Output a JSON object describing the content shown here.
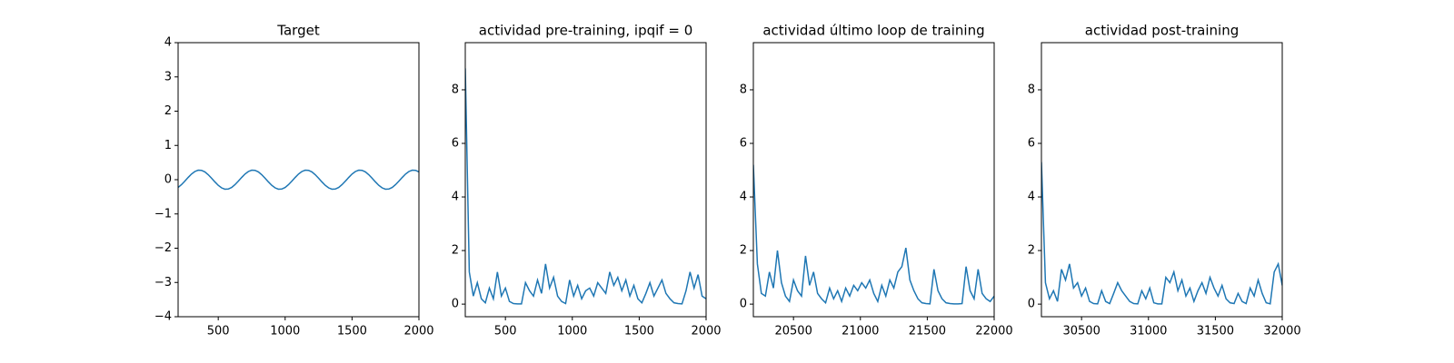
{
  "chart_data": [
    {
      "type": "line",
      "title": "Target",
      "color": "#1f77b4",
      "x": [
        200,
        225,
        250,
        275,
        300,
        325,
        350,
        375,
        400,
        425,
        450,
        475,
        500,
        525,
        550,
        575,
        600,
        625,
        650,
        675,
        700,
        725,
        750,
        775,
        800,
        825,
        850,
        875,
        900,
        925,
        950,
        975,
        1000,
        1025,
        1050,
        1075,
        1100,
        1125,
        1150,
        1175,
        1200,
        1225,
        1250,
        1275,
        1300,
        1325,
        1350,
        1375,
        1400,
        1425,
        1450,
        1475,
        1500,
        1525,
        1550,
        1575,
        1600,
        1625,
        1650,
        1675,
        1700,
        1725,
        1750,
        1775,
        1800,
        1825,
        1850,
        1875,
        1900,
        1925,
        1950,
        1975,
        2000
      ],
      "values": [
        -0.227,
        -0.146,
        -0.044,
        0.065,
        0.165,
        0.239,
        0.277,
        0.272,
        0.227,
        0.146,
        0.044,
        -0.065,
        -0.165,
        -0.239,
        -0.277,
        -0.272,
        -0.227,
        -0.146,
        -0.044,
        0.065,
        0.165,
        0.239,
        0.277,
        0.272,
        0.227,
        0.146,
        0.044,
        -0.065,
        -0.165,
        -0.239,
        -0.277,
        -0.272,
        -0.227,
        -0.146,
        -0.044,
        0.065,
        0.165,
        0.239,
        0.277,
        0.272,
        0.227,
        0.146,
        0.044,
        -0.065,
        -0.165,
        -0.239,
        -0.277,
        -0.272,
        -0.227,
        -0.146,
        -0.044,
        0.065,
        0.165,
        0.239,
        0.277,
        0.272,
        0.227,
        0.146,
        0.044,
        -0.065,
        -0.165,
        -0.239,
        -0.277,
        -0.272,
        -0.227,
        -0.146,
        -0.044,
        0.065,
        0.165,
        0.239,
        0.277,
        0.272,
        0.227
      ],
      "xlim": [
        200,
        2000
      ],
      "xticks": [
        500,
        1000,
        1500,
        2000
      ],
      "ylim": [
        -4,
        4
      ],
      "yticks": [
        {
          "value": -4,
          "label": "−4"
        },
        {
          "value": -3,
          "label": "−3"
        },
        {
          "value": -2,
          "label": "−2"
        },
        {
          "value": -1,
          "label": "−1"
        },
        0,
        1,
        2,
        3,
        4
      ]
    },
    {
      "type": "line",
      "title": "actividad pre-training, ipqif = 0",
      "color": "#1f77b4",
      "x": [
        200,
        230,
        260,
        290,
        320,
        350,
        380,
        410,
        440,
        470,
        500,
        530,
        560,
        590,
        620,
        650,
        680,
        710,
        740,
        770,
        800,
        830,
        860,
        890,
        920,
        950,
        980,
        1010,
        1040,
        1070,
        1100,
        1130,
        1160,
        1190,
        1220,
        1250,
        1280,
        1310,
        1340,
        1370,
        1400,
        1430,
        1460,
        1490,
        1520,
        1550,
        1580,
        1610,
        1640,
        1670,
        1700,
        1730,
        1760,
        1790,
        1820,
        1850,
        1880,
        1910,
        1940,
        1970,
        2000
      ],
      "values": [
        8.8,
        1.2,
        0.3,
        0.8,
        0.2,
        0.05,
        0.6,
        0.2,
        1.2,
        0.3,
        0.6,
        0.1,
        0.02,
        0.01,
        0.01,
        0.8,
        0.5,
        0.3,
        0.9,
        0.4,
        1.5,
        0.6,
        1.0,
        0.3,
        0.1,
        0.02,
        0.9,
        0.3,
        0.7,
        0.2,
        0.5,
        0.6,
        0.3,
        0.8,
        0.6,
        0.4,
        1.2,
        0.7,
        1.0,
        0.5,
        0.9,
        0.3,
        0.7,
        0.2,
        0.05,
        0.4,
        0.8,
        0.3,
        0.6,
        0.9,
        0.4,
        0.2,
        0.05,
        0.02,
        0.01,
        0.5,
        1.2,
        0.6,
        1.1,
        0.3,
        0.2
      ],
      "xlim": [
        200,
        2000
      ],
      "xticks": [
        500,
        1000,
        1500,
        2000
      ],
      "ylim": [
        -0.47,
        9.76
      ],
      "yticks": [
        0,
        2,
        4,
        6,
        8
      ]
    },
    {
      "type": "line",
      "title": "actividad último loop de training",
      "color": "#1f77b4",
      "x": [
        20200,
        20230,
        20260,
        20290,
        20320,
        20350,
        20380,
        20410,
        20440,
        20470,
        20500,
        20530,
        20560,
        20590,
        20620,
        20650,
        20680,
        20710,
        20740,
        20770,
        20800,
        20830,
        20860,
        20890,
        20920,
        20950,
        20980,
        21010,
        21040,
        21070,
        21100,
        21130,
        21160,
        21190,
        21220,
        21250,
        21280,
        21310,
        21340,
        21370,
        21400,
        21430,
        21460,
        21490,
        21520,
        21550,
        21580,
        21610,
        21640,
        21670,
        21700,
        21730,
        21760,
        21790,
        21820,
        21850,
        21880,
        21910,
        21940,
        21970,
        22000
      ],
      "values": [
        5.2,
        1.5,
        0.4,
        0.3,
        1.2,
        0.6,
        2.0,
        0.8,
        0.3,
        0.1,
        0.9,
        0.5,
        0.3,
        1.8,
        0.7,
        1.2,
        0.4,
        0.2,
        0.05,
        0.6,
        0.2,
        0.5,
        0.1,
        0.6,
        0.3,
        0.7,
        0.5,
        0.8,
        0.6,
        0.9,
        0.4,
        0.1,
        0.7,
        0.3,
        0.9,
        0.6,
        1.2,
        1.4,
        2.1,
        0.9,
        0.5,
        0.2,
        0.05,
        0.02,
        0.01,
        1.3,
        0.5,
        0.2,
        0.05,
        0.02,
        0.01,
        0.01,
        0.02,
        1.4,
        0.5,
        0.2,
        1.3,
        0.4,
        0.2,
        0.1,
        0.3
      ],
      "xlim": [
        20200,
        22000
      ],
      "xticks": [
        20500,
        21000,
        21500,
        22000
      ],
      "ylim": [
        -0.47,
        9.76
      ],
      "yticks": [
        0,
        2,
        4,
        6,
        8
      ]
    },
    {
      "type": "line",
      "title": "actividad post-training",
      "color": "#1f77b4",
      "x": [
        30200,
        30230,
        30260,
        30290,
        30320,
        30350,
        30380,
        30410,
        30440,
        30470,
        30500,
        30530,
        30560,
        30590,
        30620,
        30650,
        30680,
        30710,
        30740,
        30770,
        30800,
        30830,
        30860,
        30890,
        30920,
        30950,
        30980,
        31010,
        31040,
        31070,
        31100,
        31130,
        31160,
        31190,
        31220,
        31250,
        31280,
        31310,
        31340,
        31370,
        31400,
        31430,
        31460,
        31490,
        31520,
        31550,
        31580,
        31610,
        31640,
        31670,
        31700,
        31730,
        31760,
        31790,
        31820,
        31850,
        31880,
        31910,
        31940,
        31970,
        32000
      ],
      "values": [
        5.3,
        0.8,
        0.2,
        0.5,
        0.1,
        1.3,
        0.9,
        1.5,
        0.6,
        0.8,
        0.3,
        0.6,
        0.1,
        0.02,
        0.01,
        0.5,
        0.1,
        0.02,
        0.4,
        0.8,
        0.5,
        0.3,
        0.1,
        0.02,
        0.01,
        0.5,
        0.2,
        0.6,
        0.05,
        0.01,
        0.01,
        1.0,
        0.8,
        1.2,
        0.5,
        0.9,
        0.3,
        0.6,
        0.1,
        0.5,
        0.8,
        0.4,
        1.0,
        0.6,
        0.3,
        0.7,
        0.2,
        0.05,
        0.02,
        0.4,
        0.1,
        0.02,
        0.6,
        0.3,
        0.9,
        0.4,
        0.05,
        0.01,
        1.2,
        1.5,
        0.7
      ],
      "xlim": [
        30200,
        32000
      ],
      "xticks": [
        30500,
        31000,
        31500,
        32000
      ],
      "ylim": [
        -0.47,
        9.76
      ],
      "yticks": [
        0,
        2,
        4,
        6,
        8
      ]
    }
  ]
}
